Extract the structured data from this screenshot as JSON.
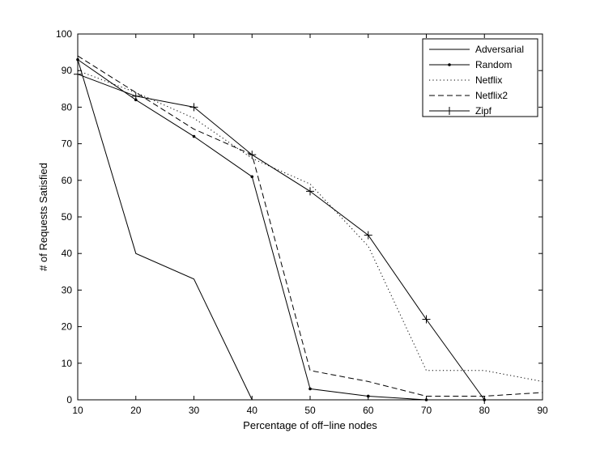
{
  "chart_data": {
    "type": "line",
    "title": "",
    "xlabel": "Percentage of off−line nodes",
    "ylabel": "# of Requests Satisfied",
    "xlim": [
      10,
      90
    ],
    "ylim": [
      0,
      100
    ],
    "xticks": [
      10,
      20,
      30,
      40,
      50,
      60,
      70,
      80,
      90
    ],
    "yticks": [
      0,
      10,
      20,
      30,
      40,
      50,
      60,
      70,
      80,
      90,
      100
    ],
    "grid": false,
    "legend_position": "top-right",
    "series": [
      {
        "name": "Adversarial",
        "style": "solid",
        "marker": "none",
        "x": [
          10,
          20,
          30,
          40
        ],
        "y": [
          93,
          40,
          33,
          0
        ]
      },
      {
        "name": "Random",
        "style": "solid",
        "marker": "dot",
        "x": [
          10,
          20,
          30,
          40,
          50,
          60,
          70,
          80
        ],
        "y": [
          93,
          82,
          72,
          61,
          3,
          1,
          0,
          0
        ]
      },
      {
        "name": "Netflix",
        "style": "dotted",
        "marker": "none",
        "x": [
          10,
          20,
          30,
          40,
          50,
          60,
          70,
          80,
          90
        ],
        "y": [
          90,
          84,
          77,
          66,
          59,
          42,
          8,
          8,
          5
        ]
      },
      {
        "name": "Netflix2",
        "style": "dashed",
        "marker": "none",
        "x": [
          10,
          20,
          30,
          40,
          50,
          60,
          70,
          80,
          90
        ],
        "y": [
          94,
          84,
          74,
          67,
          8,
          5,
          1,
          1,
          2
        ]
      },
      {
        "name": "Zipf",
        "style": "solid",
        "marker": "plus",
        "x": [
          10,
          20,
          30,
          40,
          50,
          60,
          70,
          80
        ],
        "y": [
          89,
          83,
          80,
          67,
          57,
          45,
          22,
          0
        ]
      }
    ]
  }
}
